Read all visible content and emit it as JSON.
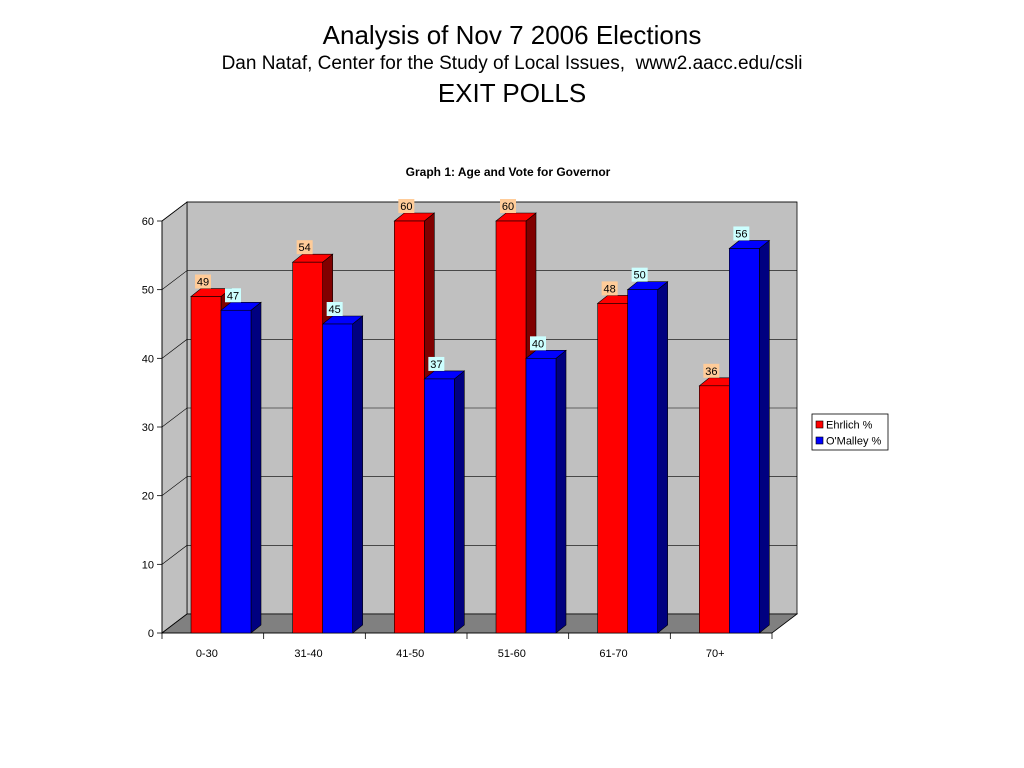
{
  "header": {
    "title": "Analysis of Nov 7 2006 Elections",
    "subtitle": "Dan Nataf, Center for the Study of Local Issues,  www2.aacc.edu/csli",
    "section": "EXIT POLLS"
  },
  "chart_data": {
    "type": "bar",
    "title": "Graph 1: Age and Vote for Governor",
    "xlabel": "",
    "ylabel": "",
    "categories": [
      "0-30",
      "31-40",
      "41-50",
      "51-60",
      "61-70",
      "70+"
    ],
    "series": [
      {
        "name": "Ehrlich %",
        "values": [
          49,
          54,
          60,
          60,
          48,
          36
        ],
        "color": "#ff0000",
        "side_color": "#800000",
        "label_bg": "#ffcc99"
      },
      {
        "name": "O'Malley %",
        "values": [
          47,
          45,
          37,
          40,
          50,
          56
        ],
        "color": "#0000ff",
        "side_color": "#000080",
        "label_bg": "#ccffff"
      }
    ],
    "yticks": [
      0,
      10,
      20,
      30,
      40,
      50,
      60
    ],
    "ylim": [
      0,
      60
    ],
    "grid": true,
    "three_d": true,
    "legend_position": "right",
    "colors": {
      "wall": "#c0c0c0",
      "floor": "#808080",
      "grid": "#000000"
    }
  }
}
